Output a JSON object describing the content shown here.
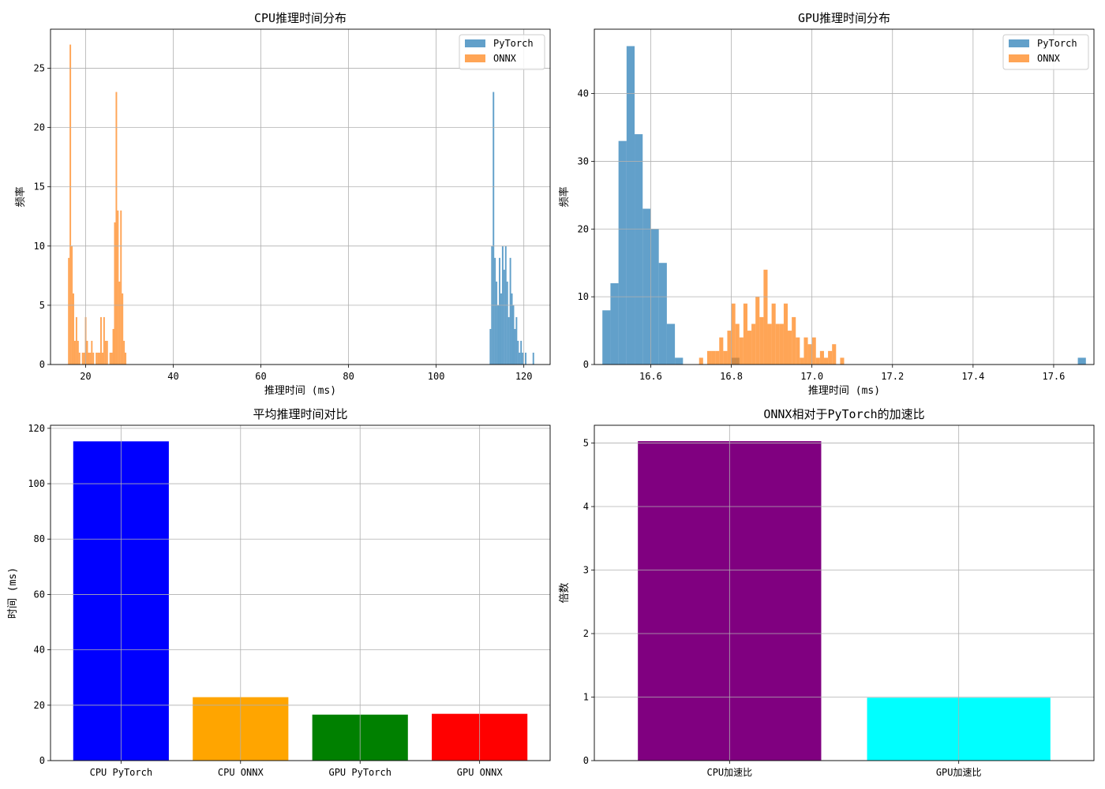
{
  "chart_data": [
    {
      "type": "histogram",
      "title": "CPU推理时间分布",
      "xlabel": "推理时间 (ms)",
      "ylabel": "频率",
      "xlim": [
        12,
        126
      ],
      "ylim": [
        0,
        28.3
      ],
      "xticks": [
        20,
        40,
        60,
        80,
        100,
        120
      ],
      "yticks": [
        0,
        5,
        10,
        15,
        20,
        25
      ],
      "grid": true,
      "legend": "top-right",
      "bin_width": 0.35,
      "series": [
        {
          "name": "PyTorch",
          "color": "#1f77b4",
          "bins": [
            [
              112.2,
              3
            ],
            [
              112.55,
              10
            ],
            [
              112.9,
              23
            ],
            [
              113.25,
              9
            ],
            [
              113.6,
              7
            ],
            [
              113.95,
              5
            ],
            [
              114.3,
              9
            ],
            [
              114.65,
              6
            ],
            [
              115.0,
              10
            ],
            [
              115.35,
              8
            ],
            [
              115.7,
              10
            ],
            [
              116.05,
              7
            ],
            [
              116.4,
              4
            ],
            [
              116.75,
              9
            ],
            [
              117.1,
              6
            ],
            [
              117.45,
              5
            ],
            [
              117.8,
              3
            ],
            [
              118.15,
              4
            ],
            [
              118.5,
              2
            ],
            [
              118.85,
              1
            ],
            [
              119.2,
              2
            ],
            [
              119.55,
              1
            ],
            [
              120.25,
              1
            ],
            [
              122.0,
              1
            ]
          ]
        },
        {
          "name": "ONNX",
          "color": "#ff7f0e",
          "bins": [
            [
              16.0,
              9
            ],
            [
              16.35,
              27
            ],
            [
              16.7,
              10
            ],
            [
              17.05,
              6
            ],
            [
              17.4,
              2
            ],
            [
              17.75,
              4
            ],
            [
              18.1,
              2
            ],
            [
              18.45,
              1
            ],
            [
              19.15,
              1
            ],
            [
              19.5,
              1
            ],
            [
              19.85,
              4
            ],
            [
              20.2,
              2
            ],
            [
              20.55,
              1
            ],
            [
              20.9,
              1
            ],
            [
              21.25,
              2
            ],
            [
              21.6,
              1
            ],
            [
              22.3,
              1
            ],
            [
              22.65,
              1
            ],
            [
              23.0,
              1
            ],
            [
              23.35,
              4
            ],
            [
              23.7,
              1
            ],
            [
              24.05,
              4
            ],
            [
              24.4,
              2
            ],
            [
              24.75,
              2
            ],
            [
              25.45,
              1
            ],
            [
              25.8,
              1
            ],
            [
              26.15,
              3
            ],
            [
              26.5,
              12
            ],
            [
              26.85,
              23
            ],
            [
              27.2,
              13
            ],
            [
              27.55,
              7
            ],
            [
              27.9,
              13
            ],
            [
              28.25,
              6
            ],
            [
              28.6,
              2
            ],
            [
              28.95,
              1
            ]
          ]
        }
      ]
    },
    {
      "type": "histogram",
      "title": "GPU推理时间分布",
      "xlabel": "推理时间 (ms)",
      "ylabel": "频率",
      "xlim": [
        16.46,
        17.7
      ],
      "ylim": [
        0,
        49.5
      ],
      "xticks": [
        16.6,
        16.8,
        17.0,
        17.2,
        17.4,
        17.6
      ],
      "yticks": [
        0,
        10,
        20,
        30,
        40
      ],
      "grid": true,
      "legend": "top-right",
      "series": [
        {
          "name": "PyTorch",
          "color": "#1f77b4",
          "bin_width": 0.02,
          "bins": [
            [
              16.48,
              8
            ],
            [
              16.5,
              12
            ],
            [
              16.52,
              33
            ],
            [
              16.54,
              47
            ],
            [
              16.56,
              34
            ],
            [
              16.58,
              23
            ],
            [
              16.6,
              20
            ],
            [
              16.62,
              15
            ],
            [
              16.64,
              6
            ],
            [
              16.66,
              1
            ],
            [
              16.8,
              1
            ],
            [
              17.66,
              1
            ]
          ]
        },
        {
          "name": "ONNX",
          "color": "#ff7f0e",
          "bin_width": 0.01,
          "bins": [
            [
              16.72,
              1
            ],
            [
              16.74,
              2
            ],
            [
              16.75,
              2
            ],
            [
              16.76,
              2
            ],
            [
              16.77,
              4
            ],
            [
              16.78,
              2
            ],
            [
              16.79,
              5
            ],
            [
              16.8,
              9
            ],
            [
              16.81,
              6
            ],
            [
              16.82,
              4
            ],
            [
              16.83,
              9
            ],
            [
              16.84,
              5
            ],
            [
              16.85,
              6
            ],
            [
              16.86,
              10
            ],
            [
              16.87,
              7
            ],
            [
              16.88,
              14
            ],
            [
              16.89,
              6
            ],
            [
              16.9,
              9
            ],
            [
              16.91,
              6
            ],
            [
              16.92,
              6
            ],
            [
              16.93,
              9
            ],
            [
              16.94,
              5
            ],
            [
              16.95,
              7
            ],
            [
              16.96,
              4
            ],
            [
              16.97,
              1
            ],
            [
              16.98,
              4
            ],
            [
              16.99,
              3
            ],
            [
              17.0,
              4
            ],
            [
              17.01,
              1
            ],
            [
              17.02,
              2
            ],
            [
              17.03,
              1
            ],
            [
              17.04,
              2
            ],
            [
              17.05,
              3
            ],
            [
              17.07,
              1
            ]
          ]
        }
      ]
    },
    {
      "type": "bar",
      "title": "平均推理时间对比",
      "xlabel": "",
      "ylabel": "时间 (ms)",
      "categories": [
        "CPU PyTorch",
        "CPU ONNX",
        "GPU PyTorch",
        "GPU ONNX"
      ],
      "values": [
        115.3,
        22.9,
        16.6,
        16.9
      ],
      "colors": [
        "#0000ff",
        "#ffa500",
        "#008000",
        "#ff0000"
      ],
      "ylim": [
        0,
        121.1
      ],
      "yticks": [
        0,
        20,
        40,
        60,
        80,
        100,
        120
      ],
      "grid": true
    },
    {
      "type": "bar",
      "title": "ONNX相对于PyTorch的加速比",
      "xlabel": "",
      "ylabel": "倍数",
      "categories": [
        "CPU加速比",
        "GPU加速比"
      ],
      "values": [
        5.03,
        0.99
      ],
      "colors": [
        "#800080",
        "#00ffff"
      ],
      "ylim": [
        0,
        5.28
      ],
      "yticks": [
        0,
        1,
        2,
        3,
        4,
        5
      ],
      "grid": true
    }
  ]
}
